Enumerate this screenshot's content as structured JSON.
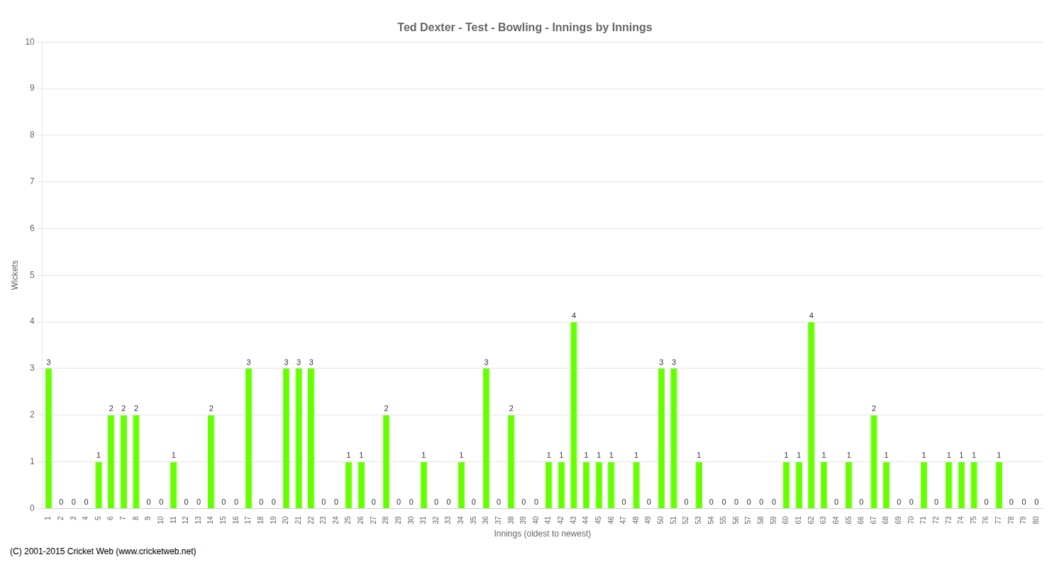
{
  "chart_data": {
    "type": "bar",
    "title": "Ted Dexter - Test - Bowling - Innings by Innings",
    "x_label": "Innings (oldest to newest)",
    "y_label": "Wickets",
    "footer": "(C) 2001-2015 Cricket Web (www.cricketweb.net)",
    "categories": [
      "1",
      "2",
      "3",
      "4",
      "5",
      "6",
      "7",
      "8",
      "9",
      "10",
      "11",
      "12",
      "13",
      "14",
      "15",
      "16",
      "17",
      "18",
      "19",
      "20",
      "21",
      "22",
      "23",
      "24",
      "25",
      "26",
      "27",
      "28",
      "29",
      "30",
      "31",
      "32",
      "33",
      "34",
      "35",
      "36",
      "37",
      "38",
      "39",
      "40",
      "41",
      "42",
      "43",
      "44",
      "45",
      "46",
      "47",
      "48",
      "49",
      "50",
      "51",
      "52",
      "53",
      "54",
      "55",
      "56",
      "57",
      "58",
      "59",
      "60",
      "61",
      "62",
      "63",
      "64",
      "65",
      "66",
      "67",
      "68",
      "69",
      "70",
      "71",
      "72",
      "73",
      "74",
      "75",
      "76",
      "77",
      "78",
      "79",
      "80"
    ],
    "values": [
      3,
      0,
      0,
      0,
      1,
      2,
      2,
      2,
      0,
      0,
      1,
      0,
      0,
      2,
      0,
      0,
      3,
      0,
      0,
      3,
      3,
      3,
      0,
      0,
      1,
      1,
      0,
      2,
      0,
      0,
      1,
      0,
      0,
      1,
      0,
      3,
      0,
      2,
      0,
      0,
      1,
      1,
      4,
      1,
      1,
      1,
      0,
      1,
      0,
      3,
      3,
      0,
      1,
      0,
      0,
      0,
      0,
      0,
      0,
      1,
      1,
      4,
      1,
      0,
      1,
      0,
      2,
      1,
      0,
      0,
      1,
      0,
      1,
      1,
      1,
      0,
      1,
      0,
      0,
      0
    ],
    "color": "#66ff00",
    "ylim": [
      0,
      10
    ],
    "yticks": [
      0,
      1,
      2,
      3,
      4,
      5,
      6,
      7,
      8,
      9,
      10
    ],
    "grid": true,
    "data_labels": true
  }
}
